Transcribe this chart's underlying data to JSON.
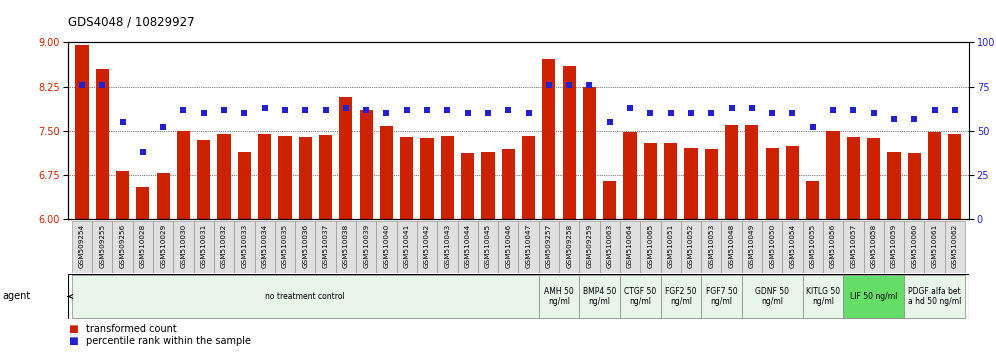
{
  "title": "GDS4048 / 10829927",
  "samples": [
    "GSM509254",
    "GSM509255",
    "GSM509256",
    "GSM510028",
    "GSM510029",
    "GSM510030",
    "GSM510031",
    "GSM510032",
    "GSM510033",
    "GSM510034",
    "GSM510035",
    "GSM510036",
    "GSM510037",
    "GSM510038",
    "GSM510039",
    "GSM510040",
    "GSM510041",
    "GSM510042",
    "GSM510043",
    "GSM510044",
    "GSM510045",
    "GSM510046",
    "GSM510047",
    "GSM509257",
    "GSM509258",
    "GSM509259",
    "GSM510063",
    "GSM510064",
    "GSM510065",
    "GSM510051",
    "GSM510052",
    "GSM510053",
    "GSM510048",
    "GSM510049",
    "GSM510050",
    "GSM510054",
    "GSM510055",
    "GSM510056",
    "GSM510057",
    "GSM510058",
    "GSM510059",
    "GSM510060",
    "GSM510061",
    "GSM510062"
  ],
  "bar_values": [
    8.95,
    8.55,
    6.82,
    6.55,
    6.78,
    7.5,
    7.35,
    7.45,
    7.15,
    7.45,
    7.42,
    7.4,
    7.43,
    8.08,
    7.85,
    7.58,
    7.4,
    7.38,
    7.42,
    7.12,
    7.15,
    7.2,
    7.42,
    8.72,
    8.6,
    8.25,
    6.65,
    7.48,
    7.3,
    7.3,
    7.22,
    7.2,
    7.6,
    7.6,
    7.22,
    7.25,
    6.65,
    7.5,
    7.4,
    7.38,
    7.15,
    7.12,
    7.48,
    7.45
  ],
  "percentile_values": [
    76,
    76,
    55,
    38,
    52,
    62,
    60,
    62,
    60,
    63,
    62,
    62,
    62,
    63,
    62,
    60,
    62,
    62,
    62,
    60,
    60,
    62,
    60,
    76,
    76,
    76,
    55,
    63,
    60,
    60,
    60,
    60,
    63,
    63,
    60,
    60,
    52,
    62,
    62,
    60,
    57,
    57,
    62,
    62
  ],
  "ylim_left": [
    6.0,
    9.0
  ],
  "ylim_right": [
    0,
    100
  ],
  "yticks_left": [
    6.0,
    6.75,
    7.5,
    8.25,
    9.0
  ],
  "yticks_right": [
    0,
    25,
    50,
    75,
    100
  ],
  "bar_color": "#cc2200",
  "dot_color": "#2222cc",
  "agent_groups": [
    {
      "label": "no treatment control",
      "start": 0,
      "end": 23,
      "color": "#e8f5e9"
    },
    {
      "label": "AMH 50\nng/ml",
      "start": 23,
      "end": 25,
      "color": "#e8f5e9"
    },
    {
      "label": "BMP4 50\nng/ml",
      "start": 25,
      "end": 27,
      "color": "#e8f5e9"
    },
    {
      "label": "CTGF 50\nng/ml",
      "start": 27,
      "end": 29,
      "color": "#e8f5e9"
    },
    {
      "label": "FGF2 50\nng/ml",
      "start": 29,
      "end": 31,
      "color": "#e8f5e9"
    },
    {
      "label": "FGF7 50\nng/ml",
      "start": 31,
      "end": 33,
      "color": "#e8f5e9"
    },
    {
      "label": "GDNF 50\nng/ml",
      "start": 33,
      "end": 36,
      "color": "#e8f5e9"
    },
    {
      "label": "KITLG 50\nng/ml",
      "start": 36,
      "end": 38,
      "color": "#e8f5e9"
    },
    {
      "label": "LIF 50 ng/ml",
      "start": 38,
      "end": 41,
      "color": "#66dd66"
    },
    {
      "label": "PDGF alfa bet\na hd 50 ng/ml",
      "start": 41,
      "end": 44,
      "color": "#e8f5e9"
    }
  ],
  "legend_labels": [
    "transformed count",
    "percentile rank within the sample"
  ],
  "agent_label": "agent"
}
